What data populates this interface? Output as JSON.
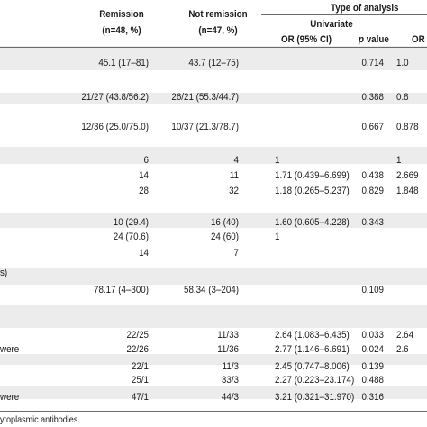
{
  "header": {
    "remission": "Remission",
    "remission_n": "(n=48, %)",
    "not_remission": "Not remission",
    "not_remission_n": "(n=47, %)",
    "type_of_analysis": "Type of analysis",
    "univariate": "Univariate",
    "or_ci": "OR (95% CI)",
    "p_italic": "p",
    "p_rest": " value",
    "or_partial": "OR"
  },
  "rows": [
    {
      "label": "",
      "rem": "45.1 (17–81)",
      "not": "43.7 (12–75)",
      "or": "",
      "p": "0.714",
      "or2": "1.0"
    },
    {
      "label": "",
      "rem": "21/27 (43.8/56.2)",
      "not": "26/21 (55.3/44.7)",
      "or": "",
      "p": "0.388",
      "or2": "0.8"
    },
    {
      "label": "",
      "rem": "12/36 (25.0/75.0)",
      "not": "10/37 (21.3/78.7)",
      "or": "",
      "p": "0.667",
      "or2": "0.878"
    },
    {
      "label": "",
      "rem": "6",
      "not": "4",
      "or": "1",
      "p": "",
      "or2": "1"
    },
    {
      "label": "",
      "rem": "14",
      "not": "11",
      "or": "1.71 (0.439–6.699)",
      "p": "0.438",
      "or2": "2.669"
    },
    {
      "label": "",
      "rem": "28",
      "not": "32",
      "or": "1.18 (0.265–5.237)",
      "p": "0.829",
      "or2": "1.848"
    },
    {
      "label": "",
      "rem": "10 (29.4)",
      "not": "16 (40)",
      "or": "1.60 (0.605–4.228)",
      "p": "0.343",
      "or2": ""
    },
    {
      "label": "",
      "rem": "24 (70.6)",
      "not": "24 (60)",
      "or": "1",
      "p": "",
      "or2": ""
    },
    {
      "label": "",
      "rem": "14",
      "not": "7",
      "or": "",
      "p": "",
      "or2": ""
    },
    {
      "label": "s)",
      "rem": "",
      "not": "",
      "or": "",
      "p": "",
      "or2": ""
    },
    {
      "label": "",
      "rem": "78.17 (4–300)",
      "not": "58.34 (3–204)",
      "or": "",
      "p": "0.109",
      "or2": ""
    },
    {
      "label": "",
      "rem": "22/25",
      "not": "11/33",
      "or": "2.64 (1.083–6.435)",
      "p": "0.033",
      "or2": "2.64"
    },
    {
      "label": "were",
      "rem": "22/26",
      "not": "11/36",
      "or": "2.77 (1.146–6.691)",
      "p": "0.024",
      "or2": "2.6"
    },
    {
      "label": "",
      "rem": "22/1",
      "not": "11/3",
      "or": "2.45 (0.747–8.006)",
      "p": "0.139",
      "or2": ""
    },
    {
      "label": "",
      "rem": "25/1",
      "not": "33/3",
      "or": "2.27 (0.223–23.174)",
      "p": "0.488",
      "or2": ""
    },
    {
      "label": "were",
      "rem": "47/1",
      "not": "44/3",
      "or": "3.21 (0.321–31.970)",
      "p": "0.316",
      "or2": ""
    }
  ],
  "footnote": "ytoplasmic antibodies."
}
